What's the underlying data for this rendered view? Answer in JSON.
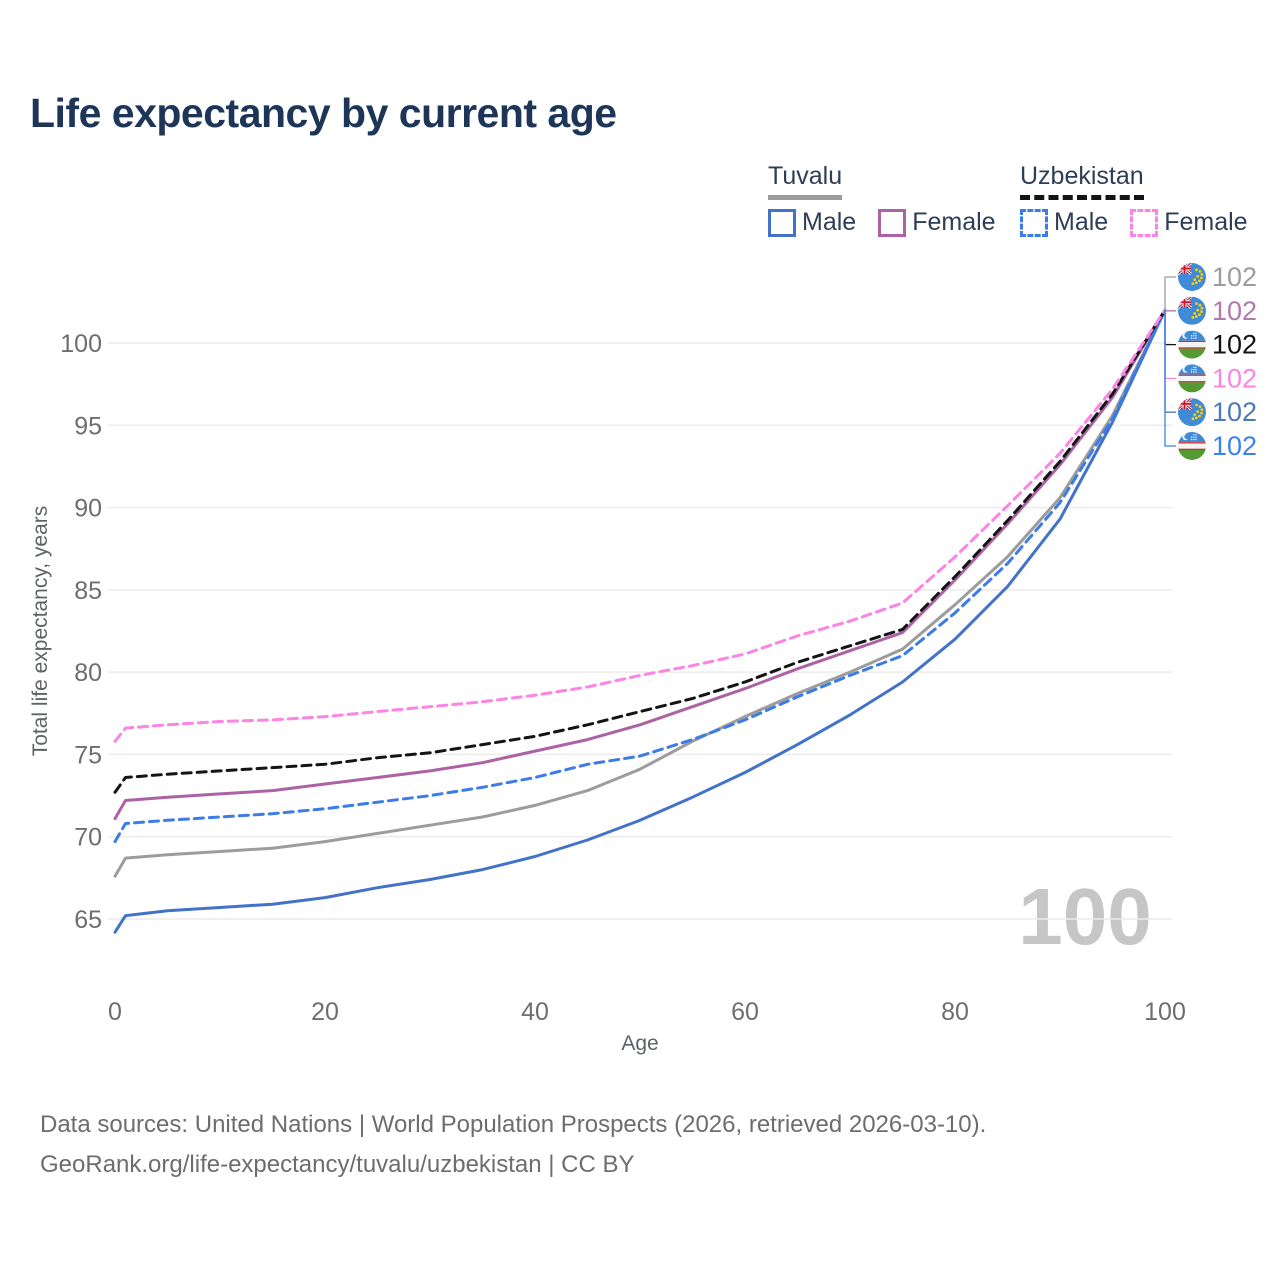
{
  "title": "Life expectancy by current age",
  "legend": {
    "groups": [
      {
        "country": "Tuvalu",
        "underline_style": "solid",
        "underline_color": "#9c9c9c",
        "items": [
          {
            "label": "Male",
            "color": "#4273c8",
            "dashed": false
          },
          {
            "label": "Female",
            "color": "#ac62a4",
            "dashed": false
          }
        ]
      },
      {
        "country": "Uzbekistan",
        "underline_style": "dashed",
        "underline_color": "#141414",
        "items": [
          {
            "label": "Male",
            "color": "#3b7ce8",
            "dashed": true
          },
          {
            "label": "Female",
            "color": "#fb84e4",
            "dashed": true
          }
        ]
      }
    ]
  },
  "chart_data": {
    "type": "line",
    "title": "Life expectancy by current age",
    "xlabel": "Age",
    "ylabel": "Total life expectancy, years",
    "xlim": [
      0,
      100
    ],
    "ylim": [
      63,
      103
    ],
    "x_ticks": [
      0,
      20,
      40,
      60,
      80,
      100
    ],
    "y_ticks": [
      65,
      70,
      75,
      80,
      85,
      90,
      95,
      100
    ],
    "grid": "horizontal",
    "legend_position": "top-right",
    "watermark": "100",
    "x": [
      0,
      1,
      5,
      10,
      15,
      20,
      25,
      30,
      35,
      40,
      45,
      50,
      55,
      60,
      65,
      70,
      75,
      80,
      85,
      90,
      95,
      100
    ],
    "series": [
      {
        "name": "Tuvalu",
        "sex": "both",
        "color": "#9c9c9c",
        "dash": "solid",
        "values": [
          67.6,
          68.7,
          68.9,
          69.1,
          69.3,
          69.7,
          70.2,
          70.7,
          71.2,
          71.9,
          72.8,
          74.1,
          75.8,
          77.3,
          78.7,
          80.0,
          81.4,
          84.1,
          87.0,
          90.6,
          95.6,
          102
        ]
      },
      {
        "name": "Tuvalu Male",
        "sex": "male",
        "color": "#4273c8",
        "dash": "solid",
        "values": [
          64.2,
          65.2,
          65.5,
          65.7,
          65.9,
          66.3,
          66.9,
          67.4,
          68.0,
          68.8,
          69.8,
          71.0,
          72.4,
          73.9,
          75.6,
          77.4,
          79.4,
          82.0,
          85.2,
          89.3,
          95.2,
          102
        ]
      },
      {
        "name": "Tuvalu Female",
        "sex": "female",
        "color": "#ac62a4",
        "dash": "solid",
        "values": [
          71.1,
          72.2,
          72.4,
          72.6,
          72.8,
          73.2,
          73.6,
          74.0,
          74.5,
          75.2,
          75.9,
          76.8,
          77.9,
          79.0,
          80.2,
          81.3,
          82.4,
          85.6,
          89.0,
          92.6,
          96.7,
          102
        ]
      },
      {
        "name": "Uzbekistan Male",
        "sex": "male",
        "color": "#3b7ce8",
        "dash": "dashed",
        "values": [
          69.7,
          70.8,
          71.0,
          71.2,
          71.4,
          71.7,
          72.1,
          72.5,
          73.0,
          73.6,
          74.4,
          74.9,
          75.9,
          77.1,
          78.5,
          79.8,
          81.0,
          83.6,
          86.6,
          90.3,
          95.4,
          102
        ]
      },
      {
        "name": "Uzbekistan",
        "sex": "both",
        "color": "#141414",
        "dash": "dashed",
        "values": [
          72.7,
          73.6,
          73.8,
          74.0,
          74.2,
          74.4,
          74.8,
          75.1,
          75.6,
          76.1,
          76.8,
          77.6,
          78.4,
          79.4,
          80.6,
          81.6,
          82.6,
          85.8,
          89.2,
          92.8,
          96.9,
          102
        ]
      },
      {
        "name": "Uzbekistan Female",
        "sex": "female",
        "color": "#fb84e4",
        "dash": "dashed",
        "values": [
          75.8,
          76.6,
          76.8,
          77.0,
          77.1,
          77.3,
          77.6,
          77.9,
          78.2,
          78.6,
          79.1,
          79.8,
          80.4,
          81.1,
          82.2,
          83.1,
          84.2,
          87.0,
          90.1,
          93.3,
          97.2,
          102
        ]
      }
    ],
    "end_labels": [
      {
        "flag": "tuvalu",
        "value": "102",
        "color": "#9c9c9c",
        "series": "Tuvalu"
      },
      {
        "flag": "tuvalu",
        "value": "102",
        "color": "#b07aab",
        "series": "Tuvalu Female"
      },
      {
        "flag": "uzbekistan",
        "value": "102",
        "color": "#141414",
        "series": "Uzbekistan"
      },
      {
        "flag": "uzbekistan",
        "value": "102",
        "color": "#fb84e4",
        "series": "Uzbekistan Female"
      },
      {
        "flag": "tuvalu",
        "value": "102",
        "color": "#4e79b8",
        "series": "Tuvalu Male"
      },
      {
        "flag": "uzbekistan",
        "value": "102",
        "color": "#3b82f0",
        "series": "Uzbekistan Male"
      }
    ]
  },
  "footer": {
    "line1": "Data sources: United Nations | World Population Prospects (2026, retrieved 2026-03-10).",
    "line2": "GeoRank.org/life-expectancy/tuvalu/uzbekistan | CC BY"
  }
}
